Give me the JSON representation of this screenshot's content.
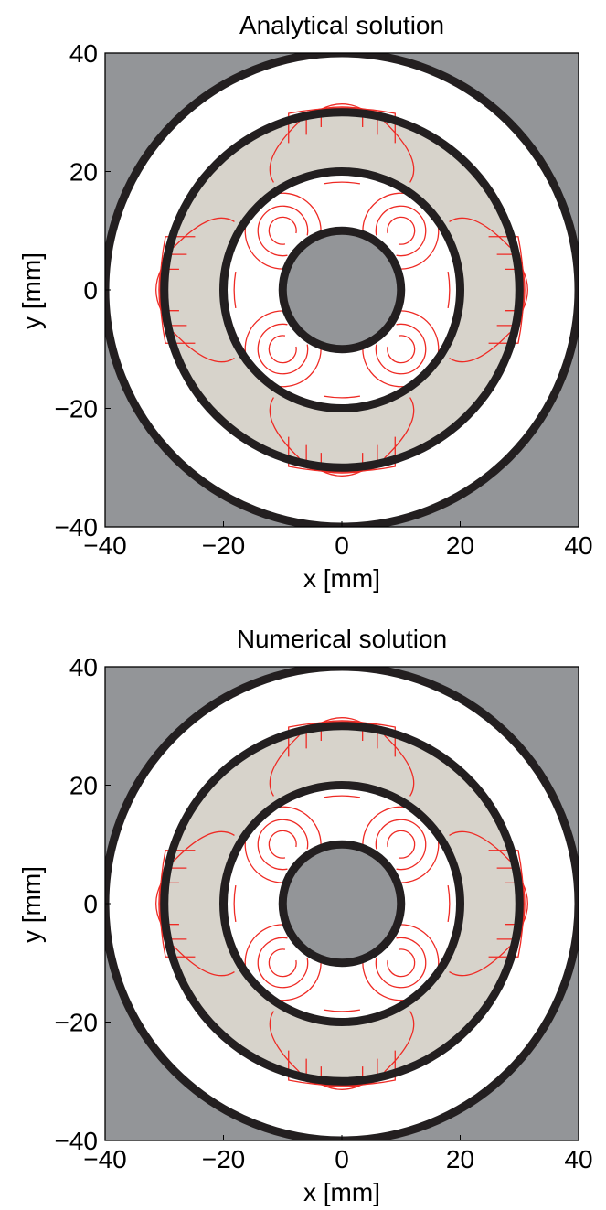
{
  "chart_data": [
    {
      "type": "contour",
      "title": "Analytical solution",
      "xlabel": "x [mm]",
      "ylabel": "y [mm]",
      "xlim": [
        -40,
        40
      ],
      "ylim": [
        -40,
        40
      ],
      "xticks": [
        -40,
        -20,
        0,
        20,
        40
      ],
      "yticks": [
        -40,
        -20,
        0,
        20,
        40
      ],
      "xtick_labels": [
        "−40",
        "−20",
        "0",
        "20",
        "40"
      ],
      "ytick_labels": [
        "−40",
        "−20",
        "0",
        "20",
        "40"
      ],
      "circle_radii": [
        10,
        20,
        30,
        40
      ],
      "colors": {
        "background": "#939598",
        "ring_fill": "#d7d3cb",
        "gap_fill": "#ffffff",
        "ring_line": "#231f20",
        "contour": "#ee2a24"
      }
    },
    {
      "type": "contour",
      "title": "Numerical solution",
      "xlabel": "x [mm]",
      "ylabel": "y [mm]",
      "xlim": [
        -40,
        40
      ],
      "ylim": [
        -40,
        40
      ],
      "xticks": [
        -40,
        -20,
        0,
        20,
        40
      ],
      "yticks": [
        -40,
        -20,
        0,
        20,
        40
      ],
      "xtick_labels": [
        "−40",
        "−20",
        "0",
        "20",
        "40"
      ],
      "ytick_labels": [
        "−40",
        "−20",
        "0",
        "20",
        "40"
      ],
      "circle_radii": [
        10,
        20,
        30,
        40
      ],
      "colors": {
        "background": "#939598",
        "ring_fill": "#d7d3cb",
        "gap_fill": "#ffffff",
        "ring_line": "#231f20",
        "contour": "#ee2a24"
      }
    }
  ]
}
